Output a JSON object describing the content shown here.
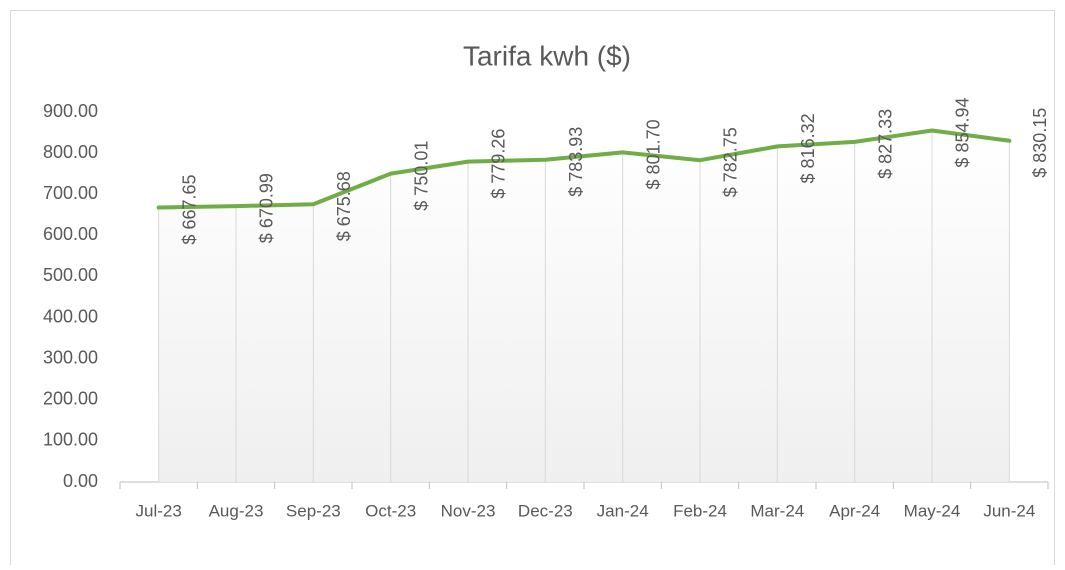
{
  "chart_data": {
    "type": "line",
    "title": "Tarifa kwh ($)",
    "categories": [
      "Jul-23",
      "Aug-23",
      "Sep-23",
      "Oct-23",
      "Nov-23",
      "Dec-23",
      "Jan-24",
      "Feb-24",
      "Mar-24",
      "Apr-24",
      "May-24",
      "Jun-24"
    ],
    "series": [
      {
        "name": "Tarifa kwh ($)",
        "color": "#70ad47",
        "values": [
          667.65,
          670.99,
          675.68,
          750.01,
          779.26,
          783.93,
          801.7,
          782.75,
          816.32,
          827.33,
          854.94,
          830.15
        ],
        "value_labels": [
          "$ 667.65",
          "$ 670.99",
          "$ 675.68",
          "$ 750.01",
          "$ 779.26",
          "$ 783.93",
          "$ 801.70",
          "$ 782.75",
          "$ 816.32",
          "$ 827.33",
          "$ 854.94",
          "$ 830.15"
        ]
      }
    ],
    "ylim": [
      0,
      900
    ],
    "yticks": [
      {
        "value": 0,
        "label": "0.00"
      },
      {
        "value": 100,
        "label": "100.00"
      },
      {
        "value": 200,
        "label": "200.00"
      },
      {
        "value": 300,
        "label": "300.00"
      },
      {
        "value": 400,
        "label": "400.00"
      },
      {
        "value": 500,
        "label": "500.00"
      },
      {
        "value": 600,
        "label": "600.00"
      },
      {
        "value": 700,
        "label": "700.00"
      },
      {
        "value": 800,
        "label": "800.00"
      },
      {
        "value": 900,
        "label": "900.00"
      }
    ],
    "grid": false,
    "drop_lines": true
  }
}
